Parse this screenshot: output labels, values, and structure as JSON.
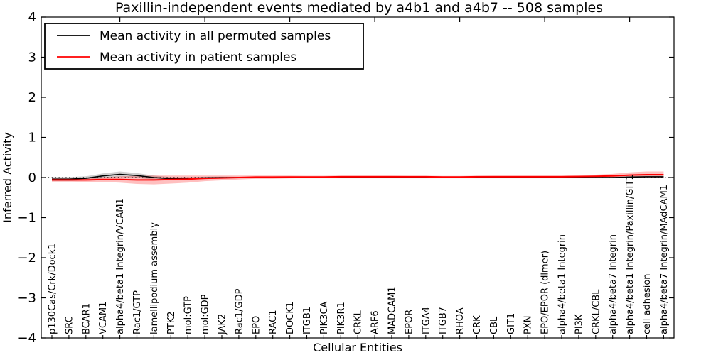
{
  "chart_data": {
    "type": "line",
    "title": "Paxillin-independent events mediated by a4b1 and a4b7 -- 508 samples",
    "xlabel": "Cellular Entities",
    "ylabel": "Inferred Activity",
    "ylim": [
      -4,
      4
    ],
    "yticks": [
      4,
      3,
      2,
      1,
      0,
      -1,
      -2,
      -3,
      -4
    ],
    "x_major_ticks": [
      5,
      10,
      15,
      20,
      25,
      30,
      35
    ],
    "zero_line": "dotted horizontal reference at y=0",
    "legend_position": "upper left",
    "grid": false,
    "categories": [
      "p130Cas/Crk/Dock1",
      "SRC",
      "BCAR1",
      "VCAM1",
      "alpha4/beta1 Integrin/VCAM1",
      "Rac1/GTP",
      "lamellipodium assembly",
      "PTK2",
      "mol:GTP",
      "mol:GDP",
      "JAK2",
      "Rac1/GDP",
      "EPO",
      "RAC1",
      "DOCK1",
      "ITGB1",
      "PIK3CA",
      "PIK3R1",
      "CRKL",
      "ARF6",
      "MADCAM1",
      "EPOR",
      "ITGA4",
      "ITGB7",
      "RHOA",
      "CRK",
      "CBL",
      "GIT1",
      "PXN",
      "EPO/EPOR (dimer)",
      "alpha4/beta1 Integrin",
      "PI3K",
      "CRKL/CBL",
      "alpha4/beta7 Integrin",
      "alpha4/beta1 Integrin/Paxillin/GIT1",
      "cell adhesion",
      "alpha4/beta7 Integrin/MAdCAM1"
    ],
    "series": [
      {
        "name": "Mean activity in all permuted samples",
        "color": "#000000",
        "band_color": "#777777",
        "band_opacity": 0.35,
        "values": [
          -0.04,
          -0.04,
          -0.02,
          0.04,
          0.08,
          0.05,
          0.0,
          -0.03,
          -0.02,
          -0.01,
          0.0,
          0.0,
          0.0,
          0.0,
          0.0,
          0.0,
          0.0,
          0.0,
          0.0,
          0.0,
          0.0,
          0.0,
          0.0,
          0.0,
          0.0,
          0.0,
          0.0,
          0.0,
          0.0,
          0.0,
          0.0,
          0.0,
          0.0,
          0.0,
          0.01,
          0.02,
          0.02
        ],
        "band_halfwidth": [
          0.05,
          0.05,
          0.05,
          0.06,
          0.07,
          0.06,
          0.05,
          0.04,
          0.03,
          0.03,
          0.025,
          0.02,
          0.02,
          0.02,
          0.02,
          0.02,
          0.02,
          0.02,
          0.02,
          0.02,
          0.02,
          0.02,
          0.02,
          0.02,
          0.02,
          0.02,
          0.02,
          0.02,
          0.02,
          0.02,
          0.02,
          0.02,
          0.02,
          0.02,
          0.025,
          0.03,
          0.03
        ]
      },
      {
        "name": "Mean activity in patient samples",
        "color": "#ff0000",
        "band_color": "#ff0000",
        "band_opacity": 0.25,
        "values": [
          -0.06,
          -0.06,
          -0.06,
          -0.05,
          -0.05,
          -0.06,
          -0.06,
          -0.05,
          -0.04,
          -0.02,
          -0.01,
          0.0,
          0.01,
          0.01,
          0.015,
          0.015,
          0.015,
          0.02,
          0.02,
          0.02,
          0.02,
          0.02,
          0.02,
          0.015,
          0.015,
          0.02,
          0.02,
          0.02,
          0.02,
          0.02,
          0.02,
          0.025,
          0.03,
          0.04,
          0.06,
          0.07,
          0.07
        ],
        "band_halfwidth": [
          0.04,
          0.04,
          0.05,
          0.06,
          0.08,
          0.1,
          0.11,
          0.1,
          0.09,
          0.07,
          0.06,
          0.05,
          0.04,
          0.04,
          0.035,
          0.03,
          0.03,
          0.03,
          0.03,
          0.03,
          0.03,
          0.025,
          0.025,
          0.025,
          0.025,
          0.025,
          0.03,
          0.03,
          0.03,
          0.03,
          0.03,
          0.035,
          0.04,
          0.05,
          0.07,
          0.08,
          0.08
        ]
      }
    ]
  }
}
